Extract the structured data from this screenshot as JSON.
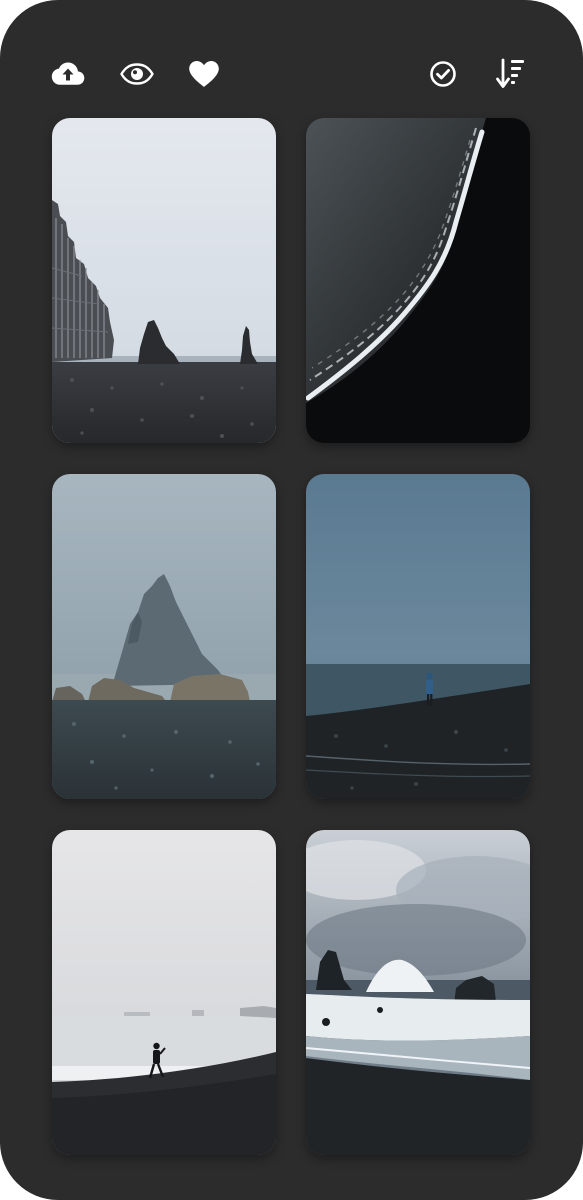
{
  "toolbar": {
    "icons": [
      "cloud-upload-icon",
      "eye-icon",
      "heart-icon",
      "check-circle-icon",
      "sort-descending-icon"
    ]
  },
  "gallery": {
    "photos": [
      {
        "subject": "basalt-columns-sea-stacks"
      },
      {
        "subject": "black-sand-shoreline-aerial"
      },
      {
        "subject": "misty-sea-stack-rocks"
      },
      {
        "subject": "person-on-black-beach"
      },
      {
        "subject": "person-foggy-beach"
      },
      {
        "subject": "crashing-waves-rocks"
      }
    ]
  },
  "colors": {
    "frame": "#2c2c2c",
    "icon": "#ffffff"
  }
}
